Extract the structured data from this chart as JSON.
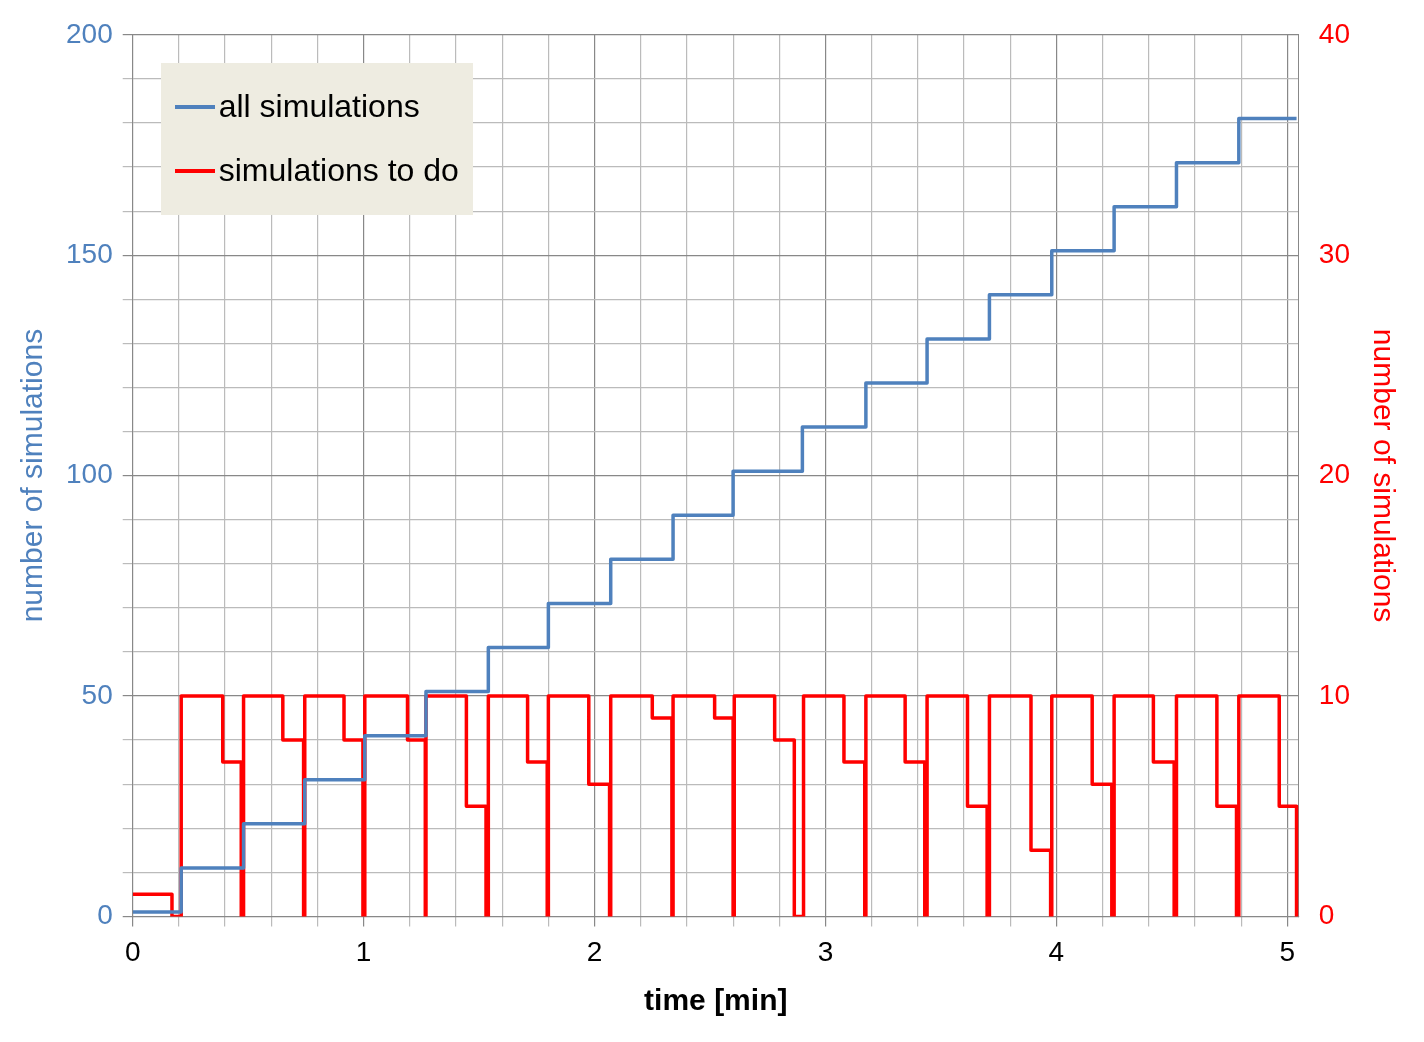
{
  "chart_data": {
    "type": "step",
    "xlabel": "time [min]",
    "ylabel": "number of simulations",
    "y2label": "number of simulations",
    "xlim": [
      0,
      5.05
    ],
    "xticks": [
      0,
      {
        "value": 0.2,
        "label": null
      },
      {
        "value": 0.4,
        "label": null
      },
      {
        "value": 0.6,
        "label": null
      },
      {
        "value": 0.8,
        "label": null
      },
      1,
      {
        "value": 1.2,
        "label": null
      },
      {
        "value": 1.4,
        "label": null
      },
      {
        "value": 1.6,
        "label": null
      },
      {
        "value": 1.8,
        "label": null
      },
      2,
      {
        "value": 2.2,
        "label": null
      },
      {
        "value": 2.4,
        "label": null
      },
      {
        "value": 2.6,
        "label": null
      },
      {
        "value": 2.8,
        "label": null
      },
      3,
      {
        "value": 3.2,
        "label": null
      },
      {
        "value": 3.4,
        "label": null
      },
      {
        "value": 3.6,
        "label": null
      },
      {
        "value": 3.8,
        "label": null
      },
      4,
      {
        "value": 4.2,
        "label": null
      },
      {
        "value": 4.4,
        "label": null
      },
      {
        "value": 4.6,
        "label": null
      },
      {
        "value": 4.8,
        "label": null
      },
      5
    ],
    "ylim": [
      0,
      200
    ],
    "yticks": [
      0,
      {
        "value": 10,
        "label": null
      },
      {
        "value": 20,
        "label": null
      },
      {
        "value": 30,
        "label": null
      },
      {
        "value": 40,
        "label": null
      },
      50,
      {
        "value": 60,
        "label": null
      },
      {
        "value": 70,
        "label": null
      },
      {
        "value": 80,
        "label": null
      },
      {
        "value": 90,
        "label": null
      },
      100,
      {
        "value": 110,
        "label": null
      },
      {
        "value": 120,
        "label": null
      },
      {
        "value": 130,
        "label": null
      },
      {
        "value": 140,
        "label": null
      },
      150,
      {
        "value": 160,
        "label": null
      },
      {
        "value": 170,
        "label": null
      },
      {
        "value": 180,
        "label": null
      },
      {
        "value": 190,
        "label": null
      },
      200
    ],
    "y2lim": [
      0,
      40
    ],
    "y2ticks": [
      0,
      10,
      20,
      30,
      40
    ],
    "grid": true,
    "legend": "top left",
    "line_style": "solid",
    "marker": "none",
    "series": [
      {
        "name": "all simulations",
        "color": "#4f81bd",
        "x": [
          0,
          0.21,
          0.48,
          0.745,
          1.005,
          1.27,
          1.54,
          1.8,
          2.07,
          2.34,
          2.6,
          2.9,
          3.175,
          3.44,
          3.71,
          3.98,
          4.25,
          4.52,
          4.79,
          5.04
        ],
        "values": [
          1,
          11,
          21,
          31,
          41,
          51,
          61,
          71,
          81,
          91,
          101,
          111,
          121,
          131,
          141,
          151,
          161,
          171,
          181,
          181
        ]
      },
      {
        "name": "simulations to do",
        "color": "#ff0000",
        "axis": "y2",
        "x": [
          0,
          0.17,
          0.21,
          0.39,
          0.47,
          0.48,
          0.65,
          0.74,
          0.745,
          0.915,
          0.997,
          1.005,
          1.19,
          1.267,
          1.27,
          1.445,
          1.53,
          1.54,
          1.71,
          1.795,
          1.8,
          1.975,
          2.065,
          2.07,
          2.25,
          2.335,
          2.34,
          2.52,
          2.6,
          2.605,
          2.78,
          2.865,
          2.905,
          3.08,
          3.17,
          3.175,
          3.345,
          3.43,
          3.44,
          3.615,
          3.7,
          3.71,
          3.89,
          3.975,
          3.98,
          4.155,
          4.24,
          4.25,
          4.42,
          4.51,
          4.52,
          4.695,
          4.78,
          4.79,
          4.965,
          5.04,
          5.045
        ],
        "values": [
          1,
          0,
          10,
          7,
          0,
          10,
          8,
          0,
          10,
          8,
          0,
          10,
          8,
          0,
          10,
          5,
          0,
          10,
          7,
          0,
          10,
          6,
          0,
          10,
          9,
          0,
          10,
          9,
          0,
          10,
          8,
          0,
          10,
          7,
          0,
          10,
          7,
          0,
          10,
          5,
          0,
          10,
          3,
          0,
          10,
          6,
          0,
          10,
          7,
          0,
          10,
          5,
          0,
          10,
          5,
          0,
          0
        ]
      }
    ]
  }
}
